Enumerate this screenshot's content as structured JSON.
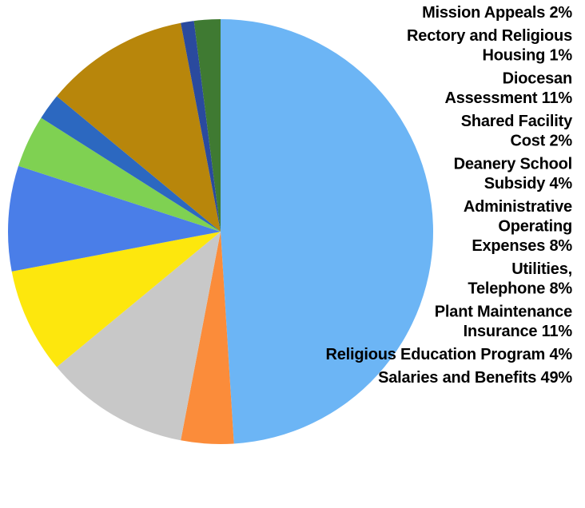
{
  "chart_data": {
    "type": "pie",
    "slices": [
      {
        "label_lines": [
          "Salaries and Benefits 49%"
        ],
        "value": 49,
        "color": "#6cb5f5"
      },
      {
        "label_lines": [
          "Religious Education Program 4%"
        ],
        "value": 4,
        "color": "#fb8c3a"
      },
      {
        "label_lines": [
          "Plant Maintenance",
          "Insurance 11%"
        ],
        "value": 11,
        "color": "#c8c8c8"
      },
      {
        "label_lines": [
          "Utilities,",
          "Telephone 8%"
        ],
        "value": 8,
        "color": "#fde70d"
      },
      {
        "label_lines": [
          "Administrative",
          "Operating",
          "Expenses 8%"
        ],
        "value": 8,
        "color": "#4a7ee8"
      },
      {
        "label_lines": [
          "Deanery School",
          "Subsidy 4%"
        ],
        "value": 4,
        "color": "#7fd152"
      },
      {
        "label_lines": [
          "Shared Facility",
          "Cost 2%"
        ],
        "value": 2,
        "color": "#2c68c0"
      },
      {
        "label_lines": [
          "Diocesan",
          "Assessment 11%"
        ],
        "value": 11,
        "color": "#b8860b"
      },
      {
        "label_lines": [
          "Rectory and Religious",
          "Housing 1%"
        ],
        "value": 1,
        "color": "#2a4a9e"
      },
      {
        "label_lines": [
          "Mission Appeals 2%"
        ],
        "value": 2,
        "color": "#3f7a32"
      }
    ],
    "start_angle_deg": 0,
    "direction": "clockwise",
    "legend_position": "right",
    "legend_order": "reverse"
  }
}
